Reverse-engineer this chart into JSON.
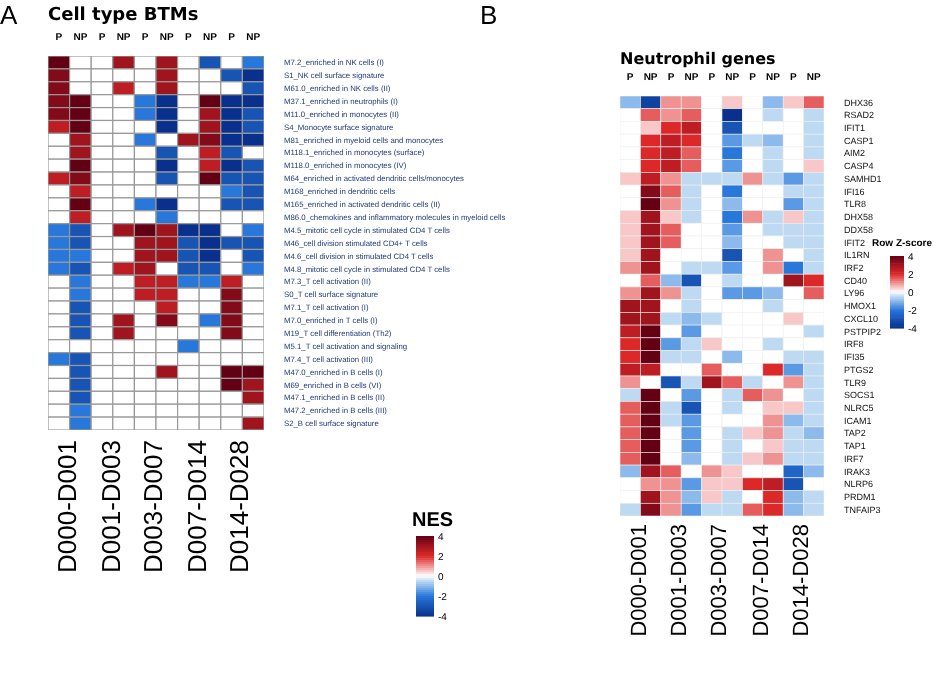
{
  "chart_data": [
    {
      "type": "heatmap",
      "title": "Cell type BTMs",
      "clabel": "NES",
      "clim": [
        -4,
        4
      ],
      "cticks": [
        4,
        2,
        0,
        -2,
        -4
      ],
      "annotations": [
        "A",
        "D000-D001",
        "D001-D003",
        "D003-D007",
        "D007-D014",
        "D014-D028"
      ],
      "categories": [
        "P",
        "NP",
        "P",
        "NP",
        "P",
        "NP",
        "P",
        "NP",
        "P",
        "NP"
      ],
      "y_categories": [
        "M7.2_enriched in NK cells (I)",
        "S1_NK cell surface signature",
        "M61.0_enriched in NK cells (II)",
        "M37.1_enriched in neutrophils (I)",
        "M11.0_enriched in monocytes (II)",
        "S4_Monocyte surface signature",
        "M81_enriched in myeloid cells and monocytes",
        "M118.1_enriched in monocytes (surface)",
        "M118.0_enriched in monocytes (IV)",
        "M64_enriched in activated dendritic cells/monocytes",
        "M168_enriched in dendritic cells",
        "M165_enriched in activated dendritic cells (II)",
        "M86.0_chemokines and inflammatory molecules in myeloid cells",
        "M4.5_mitotic cell cycle in stimulated CD4 T cells",
        "M46_cell division stimulated CD4+ T cells",
        "M4.6_cell division in stimulated CD4 T cells",
        "M4.8_mitotic cell cycle in stimulated CD4 T cells",
        "M7.3_T cell activation (II)",
        "S0_T cell surface signature",
        "M7.1_T cell activation (I)",
        "M7.0_enriched in T cells (I)",
        "M19_T cell differentiation (Th2)",
        "M5.1_T cell activation and signaling",
        "M7.4_T cell activation (III)",
        "M47.0_enriched in B cells (I)",
        "M69_enriched in B cells (VI)",
        "M47.1_enriched in B cells (II)",
        "M47.2_enriched in B cells (III)",
        "S2_B cell surface signature"
      ],
      "cells": [
        [
          4,
          0,
          0,
          3,
          0,
          3,
          0,
          -3,
          0,
          -2
        ],
        [
          3.5,
          0,
          0,
          0,
          0,
          3,
          0,
          0,
          -3,
          -4
        ],
        [
          3.5,
          0,
          0,
          2.5,
          0,
          3,
          0,
          0,
          0,
          -3
        ],
        [
          3.5,
          4,
          0,
          0,
          -2,
          -4,
          0,
          4,
          -4,
          -4
        ],
        [
          3.5,
          4,
          0,
          0,
          -2,
          -4,
          0,
          3,
          -4,
          -3
        ],
        [
          2.5,
          4,
          0,
          0,
          0,
          -4,
          0,
          3,
          -4,
          -3
        ],
        [
          0,
          3,
          0,
          0,
          -2,
          0,
          3,
          3.5,
          -4,
          -4
        ],
        [
          0,
          3,
          0,
          0,
          0,
          -3,
          0,
          2.5,
          -3,
          0
        ],
        [
          0,
          4,
          0,
          0,
          0,
          -4,
          0,
          2.5,
          -4,
          -3
        ],
        [
          2.5,
          3.5,
          0,
          0,
          0,
          -3,
          0,
          4,
          -3,
          -3
        ],
        [
          0,
          2.5,
          0,
          0,
          0,
          0,
          0,
          0,
          -2,
          -3
        ],
        [
          0,
          4,
          0,
          0,
          -2,
          -4,
          0,
          0,
          -3,
          -3
        ],
        [
          0,
          2.5,
          0,
          0,
          0,
          -2,
          0,
          0,
          0,
          0
        ],
        [
          -2,
          -3,
          0,
          3,
          4,
          3,
          -4,
          -4,
          0,
          -2
        ],
        [
          -2,
          -3,
          0,
          0,
          3,
          3,
          -3,
          -4,
          -3,
          -3
        ],
        [
          -2,
          -2,
          0,
          0,
          3,
          3,
          -3,
          -4,
          0,
          -3
        ],
        [
          -2,
          -3,
          0,
          2.5,
          3,
          0,
          -3,
          -3,
          0,
          -2
        ],
        [
          0,
          -2,
          0,
          0,
          2.5,
          2.5,
          -2,
          -2,
          2.5,
          0
        ],
        [
          0,
          -2,
          0,
          0,
          2.5,
          2.5,
          0,
          0,
          3.5,
          0
        ],
        [
          0,
          -3,
          0,
          0,
          0,
          2.5,
          0,
          0,
          3.5,
          0
        ],
        [
          0,
          -3,
          0,
          3,
          0,
          3.5,
          0,
          -2,
          3.5,
          0
        ],
        [
          0,
          -3,
          0,
          3,
          0,
          0,
          0,
          0,
          3.5,
          0
        ],
        [
          0,
          0,
          0,
          0,
          0,
          0,
          -2,
          0,
          0,
          0
        ],
        [
          -2,
          -3,
          0,
          0,
          0,
          0,
          0,
          0,
          0,
          0
        ],
        [
          0,
          -3,
          0,
          0,
          0,
          3,
          0,
          0,
          4,
          4
        ],
        [
          0,
          -3,
          0,
          0,
          0,
          0,
          0,
          0,
          4,
          3
        ],
        [
          0,
          -3,
          0,
          0,
          0,
          0,
          0,
          0,
          0,
          3
        ],
        [
          0,
          -2,
          0,
          0,
          0,
          0,
          0,
          0,
          0,
          0
        ],
        [
          0,
          -2,
          0,
          0,
          0,
          0,
          0,
          0,
          0,
          3
        ]
      ]
    },
    {
      "type": "heatmap",
      "title": "Neutrophil genes",
      "clabel": "Row Z-score",
      "clim": [
        -4,
        4
      ],
      "cticks": [
        4,
        2,
        0,
        -2,
        -4
      ],
      "annotations": [
        "B",
        "D000-D001",
        "D001-D003",
        "D003-D007",
        "D007-D014",
        "D014-D028"
      ],
      "categories": [
        "P",
        "NP",
        "P",
        "NP",
        "P",
        "NP",
        "P",
        "NP",
        "P",
        "NP"
      ],
      "y_categories": [
        "DHX36",
        "RSAD2",
        "IFIT1",
        "CASP1",
        "AIM2",
        "CASP4",
        "SAMHD1",
        "IFI16",
        "TLR8",
        "DHX58",
        "DDX58",
        "IFIT2",
        "IL1RN",
        "IRF2",
        "CD40",
        "LY96",
        "HMOX1",
        "CXCL10",
        "PSTPIP2",
        "IRF8",
        "IFI35",
        "PTGS2",
        "TLR9",
        "SOCS1",
        "NLRC5",
        "ICAM1",
        "TAP2",
        "TAP1",
        "IRF7",
        "IRAK3",
        "NLRP6",
        "PRDM1",
        "TNFAIP3"
      ],
      "cells": [
        [
          -1,
          -3.5,
          1,
          1,
          0,
          0.5,
          0,
          -1,
          0.5,
          1.5
        ],
        [
          0,
          1.5,
          1,
          1.5,
          0,
          -4,
          0,
          -0.5,
          0,
          -0.5
        ],
        [
          0,
          0.5,
          2,
          2.5,
          0,
          -3,
          0,
          0,
          0,
          -0.5
        ],
        [
          0,
          2,
          2.5,
          2,
          0,
          -1.5,
          -0.5,
          -1,
          0,
          -0.5
        ],
        [
          0,
          2,
          2.5,
          1.5,
          0,
          -2,
          0,
          -0.5,
          0,
          -0.5
        ],
        [
          0,
          2,
          2.5,
          1.5,
          0,
          -1.5,
          0,
          -0.5,
          0,
          0.5
        ],
        [
          0.5,
          2.5,
          1,
          -0.5,
          -0.5,
          -0.5,
          1,
          -0.5,
          -1.5,
          -0.5
        ],
        [
          0,
          3.5,
          1.5,
          -0.5,
          0,
          -2,
          0,
          0,
          -0.5,
          -0.5
        ],
        [
          0,
          4,
          1,
          -0.5,
          0,
          -1,
          0,
          0,
          -1.5,
          -0.5
        ],
        [
          0.5,
          3,
          0.5,
          -0.5,
          0,
          -2,
          1,
          -0.5,
          0.5,
          -0.5
        ],
        [
          0.5,
          3,
          1.5,
          0,
          0,
          -1.5,
          0,
          -0.5,
          -0.5,
          -0.5
        ],
        [
          0.5,
          3,
          1.5,
          0,
          0,
          -1,
          0,
          0,
          -0.5,
          -0.5
        ],
        [
          0.5,
          3,
          0,
          0,
          0,
          -3,
          0,
          1,
          0,
          -0.5
        ],
        [
          1,
          3,
          0,
          -0.5,
          -0.5,
          -1.5,
          0,
          1,
          -2,
          -0.5
        ],
        [
          0,
          1.5,
          -1,
          -3,
          0,
          -0.5,
          0,
          0,
          3,
          2
        ],
        [
          1,
          3,
          1,
          -0.5,
          0,
          -1.5,
          -1.5,
          -1,
          0,
          1.5
        ],
        [
          3,
          3,
          0,
          -0.5,
          0,
          0,
          0,
          -0.5,
          0,
          0
        ],
        [
          3,
          3,
          -0.5,
          -1,
          -0.5,
          0,
          0,
          0,
          0.5,
          0
        ],
        [
          2.5,
          4,
          0,
          -1.5,
          0,
          0,
          0,
          0,
          0,
          -0.5
        ],
        [
          2,
          4,
          -1.5,
          -0.5,
          0.5,
          0,
          0,
          -0.5,
          0,
          0
        ],
        [
          2,
          4,
          -0.5,
          -0.5,
          0,
          -1,
          0,
          0,
          -0.5,
          -0.5
        ],
        [
          2.5,
          2.5,
          0,
          0,
          1.5,
          0,
          0,
          2,
          -1.5,
          -0.5
        ],
        [
          1,
          0,
          -3,
          -0.5,
          3,
          1.5,
          -0.5,
          0,
          1,
          -0.5
        ],
        [
          -0.5,
          4,
          0,
          -1.5,
          0,
          -0.5,
          1.5,
          1,
          0,
          -0.5
        ],
        [
          1.5,
          4,
          -0.5,
          -3,
          0,
          -0.5,
          0,
          0.5,
          0.5,
          -0.5
        ],
        [
          1.5,
          4,
          -0.5,
          -1.5,
          0,
          0,
          0,
          1,
          -1,
          -0.5
        ],
        [
          1.5,
          4,
          0,
          -1.5,
          0,
          -0.5,
          0.5,
          1,
          -0.5,
          -1
        ],
        [
          1.5,
          4,
          0,
          -1.5,
          0,
          -0.5,
          0,
          0.5,
          -0.5,
          -0.5
        ],
        [
          1.5,
          4,
          0,
          -1,
          0,
          -0.5,
          0.5,
          1,
          -0.5,
          -0.5
        ],
        [
          -1,
          3,
          1.5,
          0,
          1,
          0.5,
          0,
          0,
          -2.5,
          -1
        ],
        [
          0,
          1,
          1,
          -1.5,
          0.5,
          0.5,
          2,
          2.5,
          -3,
          0
        ],
        [
          0,
          3,
          1,
          -1,
          0.5,
          -0.5,
          0,
          2,
          -1,
          -0.5
        ],
        [
          -0.5,
          3.5,
          1,
          -1.5,
          -0.5,
          -0.5,
          1.5,
          2,
          -1,
          -0.5
        ]
      ]
    }
  ]
}
